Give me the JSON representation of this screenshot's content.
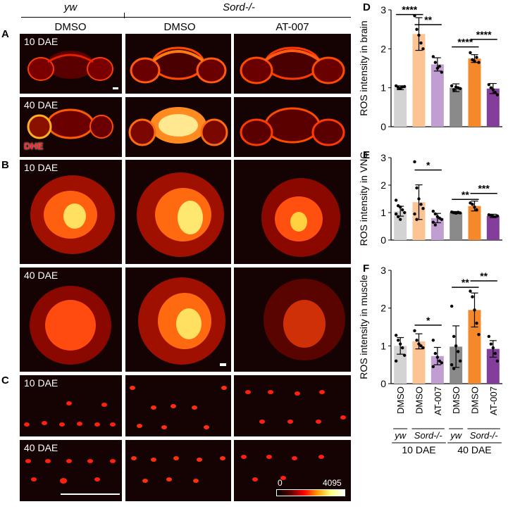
{
  "header": {
    "group_yw": "yw",
    "group_sord": "Sord-/-",
    "columns": [
      "DMSO",
      "DMSO",
      "AT-007"
    ]
  },
  "panels": {
    "A": "A",
    "B": "B",
    "C": "C",
    "D": "D",
    "E": "E",
    "F": "F"
  },
  "image_panels": {
    "A": {
      "rows": [
        "10 DAE",
        "40 DAE"
      ],
      "stain_label": "DHE"
    },
    "B": {
      "rows": [
        "10 DAE",
        "40 DAE"
      ]
    },
    "C": {
      "rows": [
        "10 DAE",
        "40 DAE"
      ],
      "colorbar_min": "0",
      "colorbar_max": "4095"
    }
  },
  "colors": {
    "yw_dmso": "#d3d3d3",
    "sord_dmso_10": "#fcc493",
    "sord_at007_10": "#c19ed1",
    "yw_dmso_40": "#8a8a8a",
    "sord_dmso_40": "#f5882a",
    "sord_at007_40": "#833e9b"
  },
  "x_axis": {
    "bar_labels": [
      "DMSO",
      "DMSO",
      "AT-007",
      "DMSO",
      "DMSO",
      "AT-007"
    ],
    "genotype_labels": [
      "yw",
      "Sord-/-",
      "yw",
      "Sord-/-"
    ],
    "timepoints": [
      "10 DAE",
      "40 DAE"
    ]
  },
  "chart_data": [
    {
      "type": "bar",
      "panel": "D",
      "ylabel": "ROS intensity in brain",
      "ylim": [
        0,
        3
      ],
      "yticks": [
        0,
        1,
        2,
        3
      ],
      "categories": [
        "yw DMSO 10 DAE",
        "Sord DMSO 10 DAE",
        "Sord AT-007 10 DAE",
        "yw DMSO 40 DAE",
        "Sord DMSO 40 DAE",
        "Sord AT-007 40 DAE"
      ],
      "values": [
        1.0,
        2.38,
        1.6,
        1.0,
        1.75,
        0.98
      ],
      "errors": [
        0.05,
        0.42,
        0.17,
        0.1,
        0.1,
        0.13
      ],
      "points": [
        [
          1.05,
          1.0,
          0.98,
          1.02,
          1.03
        ],
        [
          2.85,
          2.5,
          2.35,
          2.15,
          2.0
        ],
        [
          1.8,
          1.65,
          1.5,
          1.55,
          1.4
        ],
        [
          1.05,
          0.95,
          1.02,
          1.0,
          0.98
        ],
        [
          1.9,
          1.72,
          1.68,
          1.78,
          1.65
        ],
        [
          1.08,
          1.0,
          0.95,
          0.88,
          0.82
        ]
      ],
      "significance": [
        {
          "from": 0,
          "to": 1,
          "label": "****",
          "y": 2.88
        },
        {
          "from": 1,
          "to": 2,
          "label": "**",
          "y": 2.62
        },
        {
          "from": 3,
          "to": 4,
          "label": "****",
          "y": 2.05
        },
        {
          "from": 4,
          "to": 5,
          "label": "****",
          "y": 2.24
        }
      ]
    },
    {
      "type": "bar",
      "panel": "E",
      "ylabel": "ROS intensity in VNC",
      "ylim": [
        0,
        3
      ],
      "yticks": [
        0,
        1,
        2,
        3
      ],
      "categories": [
        "yw DMSO 10 DAE",
        "Sord DMSO 10 DAE",
        "Sord AT-007 10 DAE",
        "yw DMSO 40 DAE",
        "Sord DMSO 40 DAE",
        "Sord AT-007 40 DAE"
      ],
      "values": [
        1.05,
        1.38,
        0.8,
        1.0,
        1.24,
        0.88
      ],
      "errors": [
        0.18,
        0.63,
        0.17,
        0.04,
        0.18,
        0.06
      ],
      "points": [
        [
          1.45,
          1.25,
          1.2,
          1.1,
          1.0,
          0.95,
          0.85,
          0.75
        ],
        [
          2.85,
          1.9,
          1.5,
          1.3,
          1.15,
          0.95,
          0.75
        ],
        [
          1.05,
          0.95,
          0.85,
          0.8,
          0.75,
          0.65,
          0.55
        ],
        [
          1.02,
          1.0,
          0.98,
          1.01,
          0.99
        ],
        [
          1.35,
          1.3,
          1.2,
          1.1
        ],
        [
          0.92,
          0.9,
          0.86,
          0.85,
          0.88
        ]
      ],
      "significance": [
        {
          "from": 1,
          "to": 2,
          "label": "*",
          "y": 2.55
        },
        {
          "from": 3,
          "to": 4,
          "label": "**",
          "y": 1.48
        },
        {
          "from": 4,
          "to": 5,
          "label": "***",
          "y": 1.7
        }
      ]
    },
    {
      "type": "bar",
      "panel": "F",
      "ylabel": "ROS intensity in muscle",
      "ylim": [
        0,
        3
      ],
      "yticks": [
        0,
        1,
        2,
        3
      ],
      "categories": [
        "yw DMSO 10 DAE",
        "Sord DMSO 10 DAE",
        "Sord AT-007 10 DAE",
        "yw DMSO 40 DAE",
        "Sord DMSO 40 DAE",
        "Sord AT-007 40 DAE"
      ],
      "values": [
        1.0,
        1.12,
        0.73,
        0.98,
        1.95,
        0.92
      ],
      "errors": [
        0.22,
        0.2,
        0.23,
        0.55,
        0.45,
        0.22
      ],
      "points": [
        [
          1.28,
          1.15,
          1.05,
          0.95,
          0.75,
          0.6
        ],
        [
          1.4,
          1.15,
          1.05,
          1.0,
          0.95
        ],
        [
          1.15,
          0.8,
          0.7,
          0.6,
          0.55,
          0.45
        ],
        [
          2.05,
          1.25,
          1.0,
          0.85,
          0.6,
          0.5,
          0.4
        ],
        [
          2.45,
          2.3,
          1.95,
          1.6,
          1.3
        ],
        [
          1.25,
          1.05,
          0.95,
          0.8,
          0.6
        ]
      ],
      "significance": [
        {
          "from": 1,
          "to": 2,
          "label": "*",
          "y": 1.55
        },
        {
          "from": 3,
          "to": 4,
          "label": "**",
          "y": 2.55
        },
        {
          "from": 4,
          "to": 5,
          "label": "**",
          "y": 2.72
        }
      ]
    }
  ]
}
